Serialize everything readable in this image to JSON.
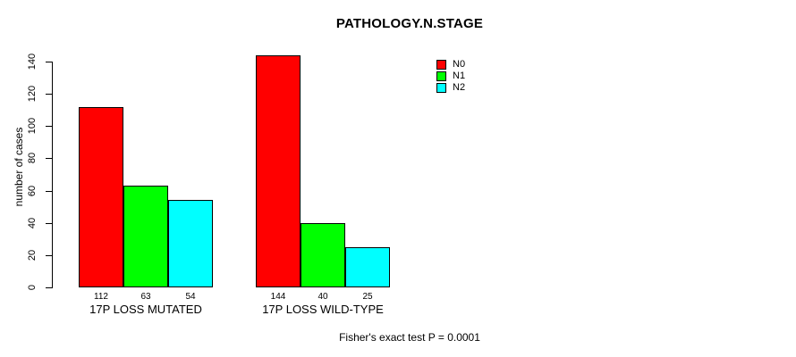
{
  "chart_data": {
    "type": "bar",
    "title": "PATHOLOGY.N.STAGE",
    "xlabel": "",
    "ylabel": "number of cases",
    "ylim": [
      0,
      140
    ],
    "yticks": [
      0,
      20,
      40,
      60,
      80,
      100,
      120,
      140
    ],
    "grid": false,
    "legend_position": "top-right",
    "categories": [
      "17P LOSS MUTATED",
      "17P LOSS WILD-TYPE"
    ],
    "series": [
      {
        "name": "N0",
        "color": "#FF0000",
        "values": [
          112,
          144
        ]
      },
      {
        "name": "N1",
        "color": "#00FF00",
        "values": [
          63,
          40
        ]
      },
      {
        "name": "N2",
        "color": "#00FFFF",
        "values": [
          54,
          25
        ]
      }
    ],
    "bar_value_labels": [
      [
        112,
        63,
        54
      ],
      [
        144,
        40,
        25
      ]
    ],
    "annotation": "Fisher's exact test P = 0.0001"
  },
  "colors": {
    "background": "#FFFFFF",
    "axis": "#000000",
    "text": "#000000"
  }
}
